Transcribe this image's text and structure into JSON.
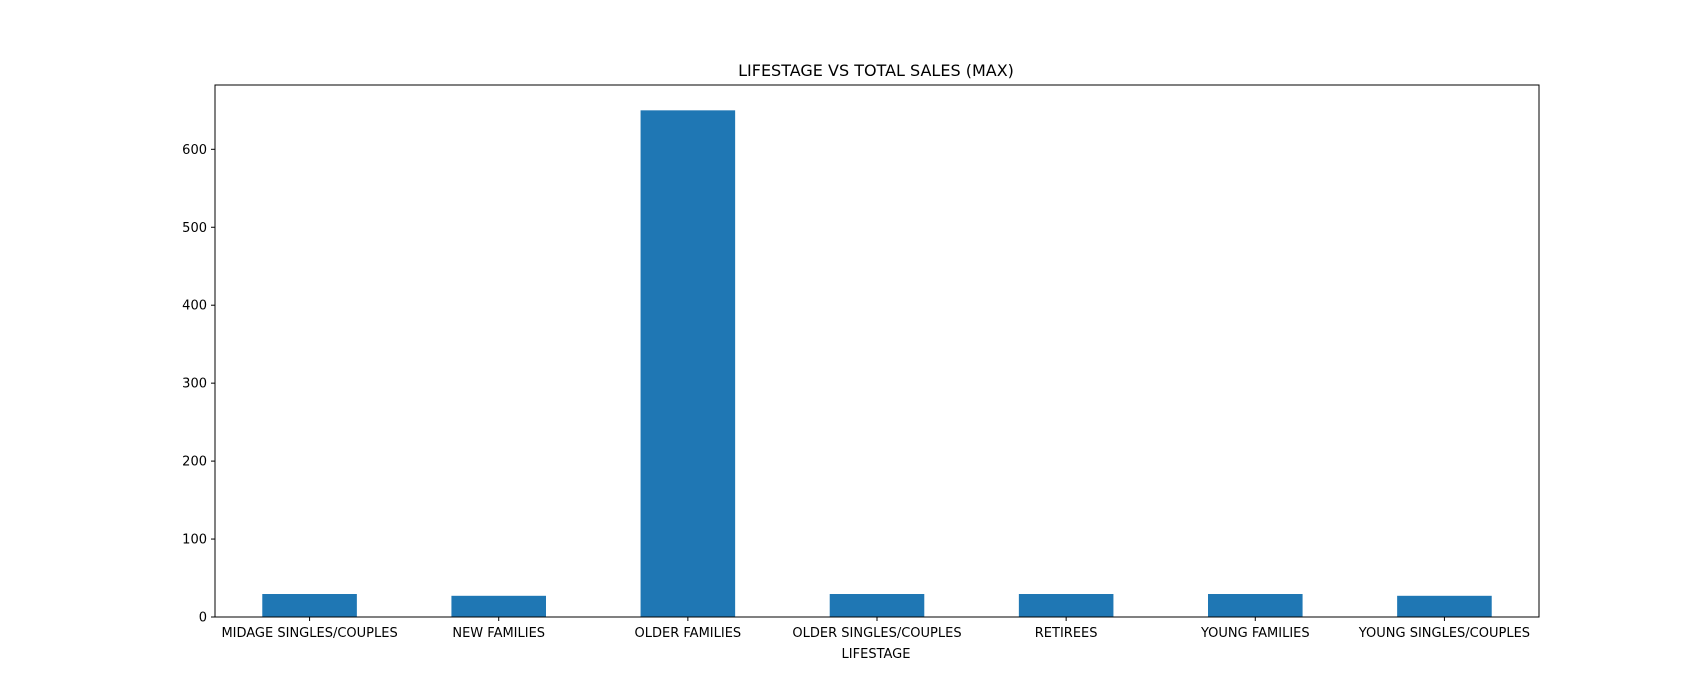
{
  "chart_data": {
    "type": "bar",
    "title": "LIFESTAGE VS TOTAL SALES (MAX)",
    "xlabel": "LIFESTAGE",
    "ylabel": "",
    "categories": [
      "MIDAGE SINGLES/COUPLES",
      "NEW FAMILIES",
      "OLDER FAMILIES",
      "OLDER SINGLES/COUPLES",
      "RETIREES",
      "YOUNG FAMILIES",
      "YOUNG SINGLES/COUPLES"
    ],
    "values": [
      29.5,
      27.2,
      650.0,
      29.5,
      29.5,
      29.5,
      27.2
    ],
    "ylim": [
      0,
      682.5
    ],
    "yticks": [
      0,
      100,
      200,
      300,
      400,
      500,
      600
    ],
    "ytick_labels": [
      "0",
      "100",
      "200",
      "300",
      "400",
      "500",
      "600"
    ],
    "grid": false,
    "bar_color": "#1f77b4"
  }
}
